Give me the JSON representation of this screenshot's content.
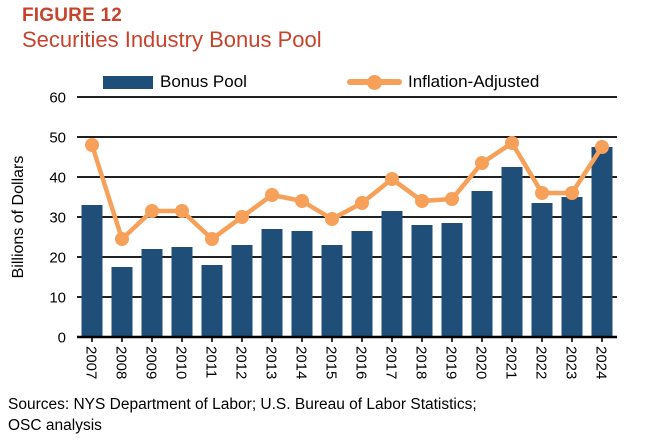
{
  "figure": {
    "label": "FIGURE 12",
    "title": "Securities Industry Bonus Pool",
    "sources_line1": "Sources: NYS Department of Labor; U.S. Bureau of Labor Statistics;",
    "sources_line2": "OSC analysis"
  },
  "colors": {
    "title_red": "#C8432D",
    "bar_blue": "#1F4E79",
    "line_orange": "#F6A05A",
    "axis_black": "#000000"
  },
  "chart_data": {
    "type": "bar",
    "title": "Securities Industry Bonus Pool",
    "xlabel": "",
    "ylabel": "Billions of Dollars",
    "ylim": [
      0,
      60
    ],
    "ytick_step": 10,
    "yticks": [
      "0",
      "10",
      "20",
      "30",
      "40",
      "50",
      "60"
    ],
    "grid": true,
    "legend_position": "top",
    "categories": [
      "2007",
      "2008",
      "2009",
      "2010",
      "2011",
      "2012",
      "2013",
      "2014",
      "2015",
      "2016",
      "2017",
      "2018",
      "2019",
      "2020",
      "2021",
      "2022",
      "2023",
      "2024"
    ],
    "series": [
      {
        "name": "Bonus Pool",
        "type": "bar",
        "color": "#1F4E79",
        "values": [
          33,
          17.5,
          22,
          22.5,
          18,
          23,
          27,
          26.5,
          23,
          26.5,
          31.5,
          28,
          28.5,
          36.5,
          42.5,
          33.5,
          35,
          47.5
        ]
      },
      {
        "name": "Inflation-Adjusted",
        "type": "line",
        "color": "#F6A05A",
        "values": [
          48,
          24.5,
          31.5,
          31.5,
          24.5,
          30,
          35.5,
          34,
          29.5,
          33.5,
          39.5,
          34,
          34.5,
          43.5,
          48.5,
          36,
          36,
          47.5
        ]
      }
    ]
  }
}
